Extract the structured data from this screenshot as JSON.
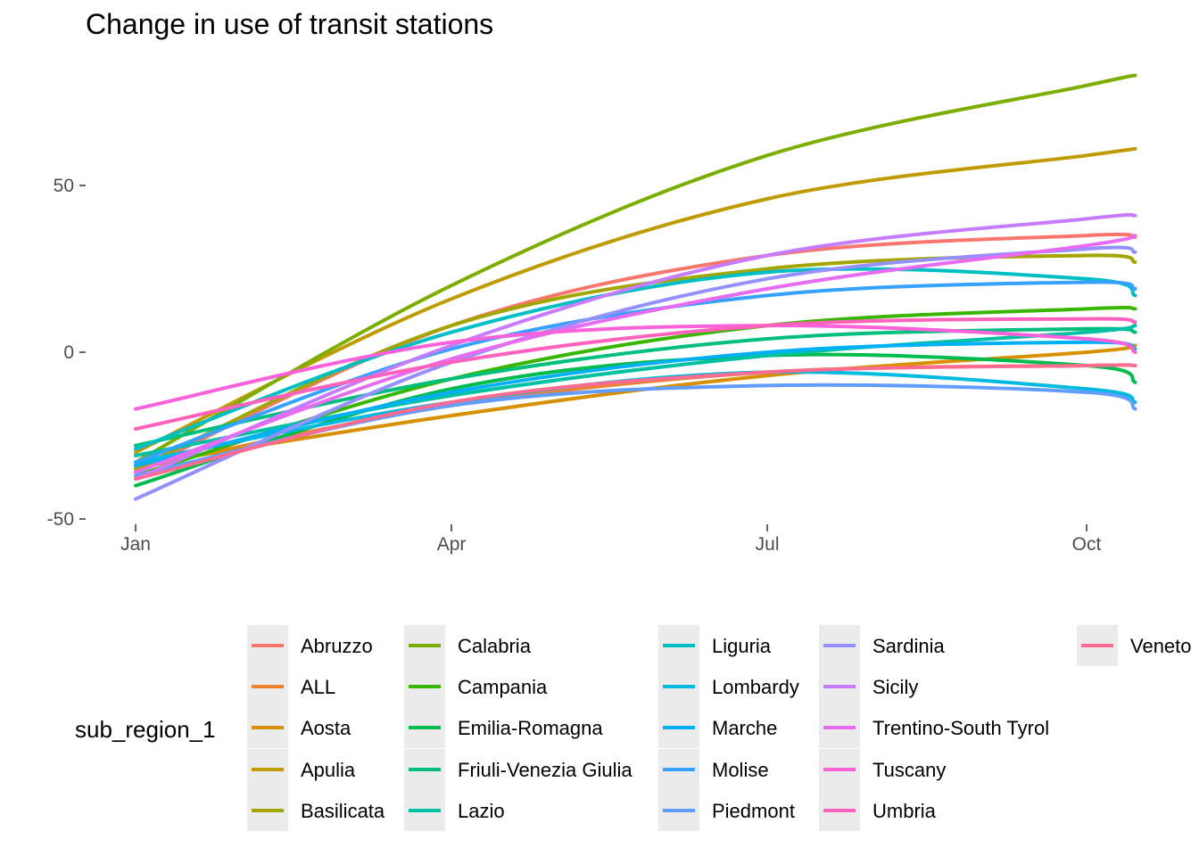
{
  "chart_data": {
    "type": "line",
    "title": "Change in use of transit stations",
    "xlabel": "",
    "ylabel": "",
    "x_ticks": [
      {
        "label": "Jan",
        "day": 0
      },
      {
        "label": "Apr",
        "day": 91
      },
      {
        "label": "Jul",
        "day": 182
      },
      {
        "label": "Oct",
        "day": 274
      }
    ],
    "y_ticks": [
      -50,
      0,
      50
    ],
    "xlim_days": [
      0,
      288
    ],
    "ylim": [
      -55,
      84
    ],
    "grid": false,
    "legend": {
      "title": "sub_region_1",
      "placement": "bottom"
    },
    "series": [
      {
        "name": "Abruzzo",
        "color": "#F8766D",
        "points": [
          [
            0,
            -36
          ],
          [
            91,
            8
          ],
          [
            182,
            29
          ],
          [
            274,
            35
          ],
          [
            288,
            34.5
          ]
        ]
      },
      {
        "name": "ALL",
        "color": "#EA8331",
        "points": [
          [
            0,
            -35
          ],
          [
            91,
            -16
          ],
          [
            182,
            -6
          ],
          [
            274,
            -4
          ],
          [
            288,
            -4
          ]
        ]
      },
      {
        "name": "Aosta",
        "color": "#D89000",
        "points": [
          [
            0,
            -34
          ],
          [
            91,
            -19
          ],
          [
            182,
            -7
          ],
          [
            274,
            0
          ],
          [
            288,
            2
          ]
        ]
      },
      {
        "name": "Apulia",
        "color": "#C09B00",
        "points": [
          [
            0,
            -30
          ],
          [
            91,
            16
          ],
          [
            182,
            46
          ],
          [
            274,
            59
          ],
          [
            288,
            61
          ]
        ]
      },
      {
        "name": "Basilicata",
        "color": "#A3A500",
        "points": [
          [
            0,
            -35
          ],
          [
            91,
            8
          ],
          [
            182,
            25
          ],
          [
            274,
            29
          ],
          [
            288,
            27
          ]
        ]
      },
      {
        "name": "Calabria",
        "color": "#7CAE00",
        "points": [
          [
            0,
            -33
          ],
          [
            91,
            20
          ],
          [
            182,
            59
          ],
          [
            274,
            80
          ],
          [
            288,
            83
          ]
        ]
      },
      {
        "name": "Campania",
        "color": "#39B600",
        "points": [
          [
            0,
            -37
          ],
          [
            91,
            -8
          ],
          [
            182,
            8
          ],
          [
            274,
            13
          ],
          [
            288,
            13
          ]
        ]
      },
      {
        "name": "Emilia-Romagna",
        "color": "#00BB4E",
        "points": [
          [
            0,
            -40
          ],
          [
            91,
            -11
          ],
          [
            182,
            -1
          ],
          [
            274,
            -4
          ],
          [
            288,
            -9
          ]
        ]
      },
      {
        "name": "Friuli-Venezia Giulia",
        "color": "#00BF7D",
        "points": [
          [
            0,
            -28
          ],
          [
            91,
            -8
          ],
          [
            182,
            4
          ],
          [
            274,
            7
          ],
          [
            288,
            6
          ]
        ]
      },
      {
        "name": "Lazio",
        "color": "#00C1A3",
        "points": [
          [
            0,
            -31
          ],
          [
            91,
            -13
          ],
          [
            182,
            -1
          ],
          [
            274,
            6
          ],
          [
            288,
            8
          ]
        ]
      },
      {
        "name": "Liguria",
        "color": "#00BFC4",
        "points": [
          [
            0,
            -29
          ],
          [
            91,
            6
          ],
          [
            182,
            24
          ],
          [
            274,
            22
          ],
          [
            288,
            17
          ]
        ]
      },
      {
        "name": "Lombardy",
        "color": "#00BAE0",
        "points": [
          [
            0,
            -33
          ],
          [
            91,
            -15
          ],
          [
            182,
            -6
          ],
          [
            274,
            -11
          ],
          [
            288,
            -15
          ]
        ]
      },
      {
        "name": "Marche",
        "color": "#00B0F6",
        "points": [
          [
            0,
            -34
          ],
          [
            91,
            -12
          ],
          [
            182,
            0
          ],
          [
            274,
            3
          ],
          [
            288,
            1
          ]
        ]
      },
      {
        "name": "Molise",
        "color": "#35A2FF",
        "points": [
          [
            0,
            -33
          ],
          [
            91,
            1
          ],
          [
            182,
            17
          ],
          [
            274,
            21
          ],
          [
            288,
            19
          ]
        ]
      },
      {
        "name": "Piedmont",
        "color": "#619CFF",
        "points": [
          [
            0,
            -37
          ],
          [
            91,
            -16
          ],
          [
            182,
            -10
          ],
          [
            274,
            -12
          ],
          [
            288,
            -17
          ]
        ]
      },
      {
        "name": "Sardinia",
        "color": "#9590FF",
        "points": [
          [
            0,
            -44
          ],
          [
            91,
            -3
          ],
          [
            182,
            22
          ],
          [
            274,
            31
          ],
          [
            288,
            30
          ]
        ]
      },
      {
        "name": "Sicily",
        "color": "#C77CFF",
        "points": [
          [
            0,
            -38
          ],
          [
            91,
            2
          ],
          [
            182,
            29
          ],
          [
            274,
            40
          ],
          [
            288,
            41
          ]
        ]
      },
      {
        "name": "Trentino-South Tyrol",
        "color": "#E76BF3",
        "points": [
          [
            0,
            -36
          ],
          [
            91,
            -2
          ],
          [
            182,
            19
          ],
          [
            274,
            32
          ],
          [
            288,
            35
          ]
        ]
      },
      {
        "name": "Tuscany",
        "color": "#FA62DB",
        "points": [
          [
            0,
            -17
          ],
          [
            91,
            3
          ],
          [
            182,
            8
          ],
          [
            274,
            4
          ],
          [
            288,
            0
          ]
        ]
      },
      {
        "name": "Umbria",
        "color": "#FF62BC",
        "points": [
          [
            0,
            -23
          ],
          [
            91,
            -3
          ],
          [
            182,
            8
          ],
          [
            274,
            10
          ],
          [
            288,
            9
          ]
        ]
      },
      {
        "name": "Veneto",
        "color": "#FF6C91",
        "points": [
          [
            0,
            -38
          ],
          [
            91,
            -15
          ],
          [
            182,
            -6
          ],
          [
            274,
            -4
          ],
          [
            288,
            -4
          ]
        ]
      }
    ]
  }
}
